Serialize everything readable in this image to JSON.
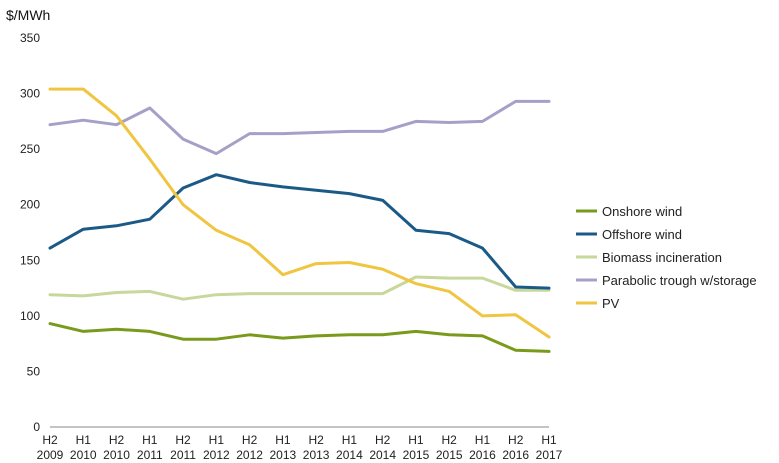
{
  "chart_data": {
    "type": "line",
    "ylabel": "$/MWh",
    "ylim": [
      0,
      350
    ],
    "yticks": [
      0,
      50,
      100,
      150,
      200,
      250,
      300,
      350
    ],
    "categories": [
      [
        "H2",
        "2009"
      ],
      [
        "H1",
        "2010"
      ],
      [
        "H2",
        "2010"
      ],
      [
        "H1",
        "2011"
      ],
      [
        "H2",
        "2011"
      ],
      [
        "H1",
        "2012"
      ],
      [
        "H2",
        "2012"
      ],
      [
        "H1",
        "2013"
      ],
      [
        "H2",
        "2013"
      ],
      [
        "H1",
        "2014"
      ],
      [
        "H2",
        "2014"
      ],
      [
        "H1",
        "2015"
      ],
      [
        "H2",
        "2015"
      ],
      [
        "H1",
        "2016"
      ],
      [
        "H2",
        "2016"
      ],
      [
        "H1",
        "2017"
      ]
    ],
    "grid": false,
    "legend": "right",
    "series": [
      {
        "name": "Onshore wind",
        "color": "#7a9a1c",
        "values": [
          93,
          86,
          88,
          86,
          79,
          79,
          83,
          80,
          82,
          83,
          83,
          86,
          83,
          82,
          69,
          68
        ]
      },
      {
        "name": "Offshore wind",
        "color": "#1b5a86",
        "values": [
          161,
          178,
          181,
          187,
          215,
          227,
          220,
          216,
          213,
          210,
          204,
          177,
          174,
          161,
          126,
          125
        ]
      },
      {
        "name": "Biomass incineration",
        "color": "#c8d79b",
        "values": [
          119,
          118,
          121,
          122,
          115,
          119,
          120,
          120,
          120,
          120,
          120,
          135,
          134,
          134,
          123,
          123
        ]
      },
      {
        "name": "Parabolic trough w/storage",
        "color": "#a4a0c8",
        "values": [
          272,
          276,
          272,
          287,
          259,
          246,
          264,
          264,
          265,
          266,
          266,
          275,
          274,
          275,
          293,
          293
        ]
      },
      {
        "name": "PV",
        "color": "#f0c542",
        "values": [
          304,
          304,
          280,
          241,
          200,
          177,
          164,
          137,
          147,
          148,
          142,
          129,
          122,
          100,
          101,
          81
        ]
      }
    ]
  }
}
